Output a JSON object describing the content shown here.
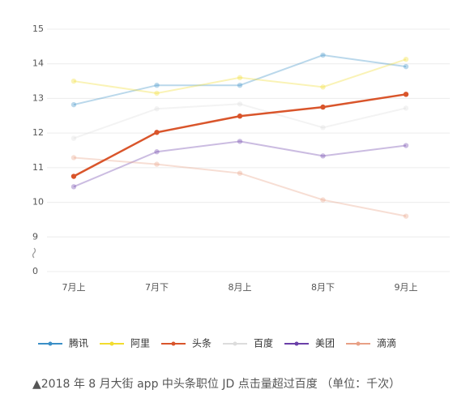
{
  "chart_data": {
    "type": "line",
    "categories": [
      "7月上",
      "7月下",
      "8月上",
      "8月下",
      "9月上"
    ],
    "series": [
      {
        "name": "腾讯",
        "color": "#3a8fc7",
        "values": [
          12.82,
          13.38,
          13.38,
          14.25,
          13.92
        ]
      },
      {
        "name": "阿里",
        "color": "#f2dc2e",
        "values": [
          13.5,
          13.15,
          13.6,
          13.33,
          14.13
        ]
      },
      {
        "name": "头条",
        "color": "#d9552b",
        "values": [
          10.75,
          12.02,
          12.49,
          12.75,
          13.12
        ]
      },
      {
        "name": "百度",
        "color": "#dcdcdc",
        "values": [
          11.85,
          12.7,
          12.84,
          12.16,
          12.72
        ]
      },
      {
        "name": "美团",
        "color": "#6a3fa8",
        "values": [
          10.45,
          11.46,
          11.76,
          11.34,
          11.64
        ]
      },
      {
        "name": "滴滴",
        "color": "#e8a085",
        "values": [
          11.29,
          11.1,
          10.84,
          10.07,
          9.6
        ]
      }
    ],
    "highlight": "头条",
    "ylim": [
      8,
      15
    ],
    "yticks": [
      0,
      9,
      10,
      11,
      12,
      13,
      14,
      15
    ],
    "axis_break": true,
    "grid": true,
    "caption": "▲2018 年 8 月大街 app 中头条职位 JD 点击量超过百度 （单位：千次）"
  }
}
